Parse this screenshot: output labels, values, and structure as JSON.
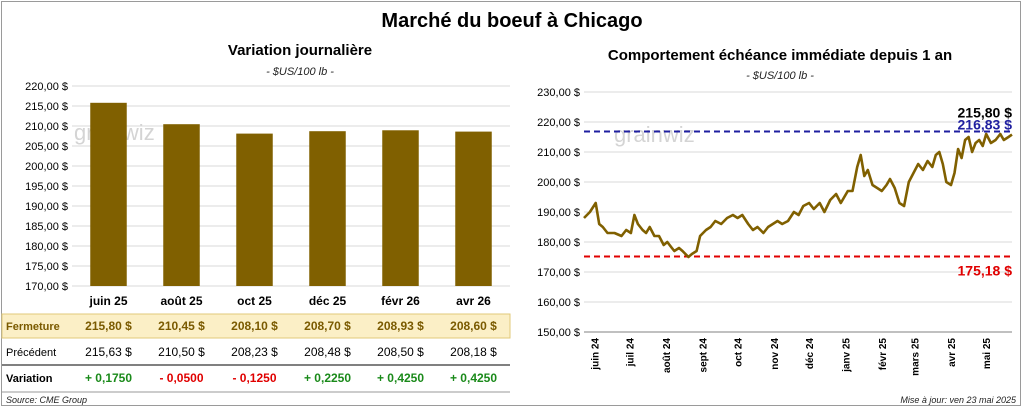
{
  "page": {
    "title": "Marché du boeuf à Chicago",
    "source": "Source: CME Group",
    "update": "Mise à jour: ven 23 mai 2025",
    "watermark": "grainwiz"
  },
  "left_panel": {
    "title": "Variation  journalière",
    "unit": "- $US/100 lb -"
  },
  "right_panel": {
    "title": "Comportement  échéance immédiate depuis 1 an",
    "unit": "- $US/100 lb -"
  },
  "table": {
    "rows": [
      {
        "label": "Fermeture",
        "values": [
          "215,80  $",
          "210,45  $",
          "208,10  $",
          "208,70  $",
          "208,93  $",
          "208,60  $"
        ]
      },
      {
        "label": "Précédent",
        "values": [
          "215,63  $",
          "210,50  $",
          "208,23  $",
          "208,48  $",
          "208,50  $",
          "208,18  $"
        ]
      },
      {
        "label": "Variation",
        "values": [
          "+ 0,1750",
          "- 0,0500",
          "- 0,1250",
          "+ 0,2250",
          "+ 0,4250",
          "+ 0,4250"
        ]
      }
    ]
  },
  "chart_data": [
    {
      "type": "bar",
      "categories": [
        "juin 25",
        "août 25",
        "oct 25",
        "déc 25",
        "févr 26",
        "avr 26"
      ],
      "values": [
        215.8,
        210.45,
        208.1,
        208.7,
        208.93,
        208.6
      ],
      "ylim": [
        170,
        220
      ],
      "yticks": [
        170,
        175,
        180,
        185,
        190,
        195,
        200,
        205,
        210,
        215,
        220
      ],
      "ytick_labels": [
        "170,00 $",
        "175,00 $",
        "180,00 $",
        "185,00 $",
        "190,00 $",
        "195,00 $",
        "200,00 $",
        "205,00 $",
        "210,00 $",
        "215,00 $",
        "220,00 $"
      ],
      "color": "#806000",
      "grid": true
    },
    {
      "type": "line",
      "ylim": [
        150,
        230
      ],
      "yticks": [
        150,
        160,
        170,
        180,
        190,
        200,
        210,
        220,
        230
      ],
      "ytick_labels": [
        "150,00 $",
        "160,00 $",
        "170,00 $",
        "180,00 $",
        "190,00 $",
        "200,00 $",
        "210,00 $",
        "220,00 $",
        "230,00 $"
      ],
      "x_labels": [
        "juin 24",
        "juil 24",
        "août 24",
        "sept 24",
        "oct 24",
        "nov 24",
        "déc 24",
        "janv 25",
        "févr 25",
        "mars 25",
        "avr 25",
        "mai 25"
      ],
      "series": [
        {
          "color": "#806000",
          "x": [
            "2024-05-23",
            "2024-05-28",
            "2024-06-02",
            "2024-06-05",
            "2024-06-08",
            "2024-06-12",
            "2024-06-18",
            "2024-06-24",
            "2024-06-28",
            "2024-07-02",
            "2024-07-05",
            "2024-07-08",
            "2024-07-12",
            "2024-07-15",
            "2024-07-18",
            "2024-07-22",
            "2024-07-26",
            "2024-07-30",
            "2024-08-02",
            "2024-08-06",
            "2024-08-08",
            "2024-08-12",
            "2024-08-15",
            "2024-08-20",
            "2024-08-23",
            "2024-08-27",
            "2024-08-30",
            "2024-09-04",
            "2024-09-08",
            "2024-09-12",
            "2024-09-17",
            "2024-09-22",
            "2024-09-27",
            "2024-10-01",
            "2024-10-05",
            "2024-10-10",
            "2024-10-14",
            "2024-10-18",
            "2024-10-23",
            "2024-10-27",
            "2024-10-31",
            "2024-11-04",
            "2024-11-08",
            "2024-11-13",
            "2024-11-18",
            "2024-11-22",
            "2024-11-26",
            "2024-12-01",
            "2024-12-05",
            "2024-12-10",
            "2024-12-14",
            "2024-12-19",
            "2024-12-24",
            "2024-12-28",
            "2025-01-03",
            "2025-01-07",
            "2025-01-11",
            "2025-01-14",
            "2025-01-17",
            "2025-01-20",
            "2025-01-24",
            "2025-01-28",
            "2025-02-01",
            "2025-02-05",
            "2025-02-08",
            "2025-02-12",
            "2025-02-16",
            "2025-02-20",
            "2025-02-24",
            "2025-02-28",
            "2025-03-04",
            "2025-03-08",
            "2025-03-12",
            "2025-03-16",
            "2025-03-19",
            "2025-03-22",
            "2025-03-25",
            "2025-03-28",
            "2025-04-01",
            "2025-04-04",
            "2025-04-07",
            "2025-04-10",
            "2025-04-13",
            "2025-04-16",
            "2025-04-19",
            "2025-04-22",
            "2025-04-25",
            "2025-04-28",
            "2025-05-01",
            "2025-05-05",
            "2025-05-09",
            "2025-05-13",
            "2025-05-16",
            "2025-05-20",
            "2025-05-23"
          ],
          "y": [
            188,
            190,
            193,
            186,
            185,
            183,
            183,
            182,
            184,
            183,
            189,
            186,
            184,
            183,
            185,
            182,
            182,
            179,
            180,
            178,
            177,
            178,
            177,
            175,
            176,
            177,
            182,
            184,
            185,
            187,
            186,
            188,
            189,
            188,
            189,
            186,
            184,
            185,
            183,
            185,
            186,
            187,
            186,
            187,
            190,
            189,
            192,
            193,
            191,
            193,
            190,
            194,
            196,
            193,
            197,
            197,
            205,
            209,
            202,
            204,
            199,
            198,
            197,
            199,
            201,
            198,
            193,
            192,
            200,
            203,
            206,
            204,
            207,
            205,
            209,
            210,
            206,
            200,
            199,
            203,
            211,
            208,
            214,
            215,
            210,
            213,
            214,
            212,
            216,
            213,
            214,
            216,
            214,
            215,
            215.8
          ]
        }
      ],
      "reference_lines": [
        {
          "value": 216.83,
          "label": "216,83 $",
          "color": "#1f1fa0"
        },
        {
          "value": 175.18,
          "label": "175,18 $",
          "color": "#e00000"
        }
      ],
      "last_label": "215,80 $",
      "grid": true
    }
  ]
}
